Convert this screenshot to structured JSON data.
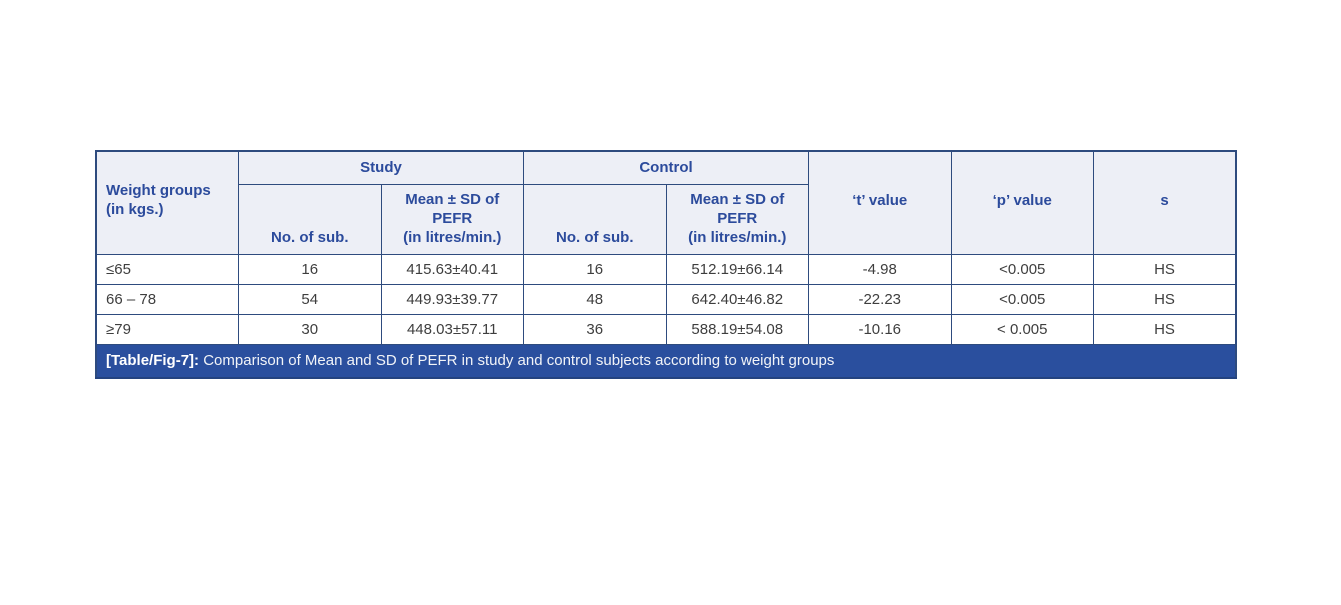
{
  "table": {
    "header": {
      "weight_groups": "Weight groups\n(in kgs.)",
      "study": "Study",
      "control": "Control",
      "study_no_of_sub": "No. of sub.",
      "study_mean_sd": "Mean ± SD of\nPEFR\n(in litres/min.)",
      "control_no_of_sub": "No. of sub.",
      "control_mean_sd": "Mean ± SD of\nPEFR\n(in litres/min.)",
      "t_value": "‘t’ value",
      "p_value": "‘p’ value",
      "s": "s"
    },
    "rows": [
      {
        "group": "≤65",
        "study_n": "16",
        "study_mean_sd": "415.63±40.41",
        "control_n": "16",
        "control_mean_sd": "512.19±66.14",
        "t_value": "-4.98",
        "p_value": "<0.005",
        "s": "HS"
      },
      {
        "group": "66 – 78",
        "study_n": "54",
        "study_mean_sd": "449.93±39.77",
        "control_n": "48",
        "control_mean_sd": "642.40±46.82",
        "t_value": "-22.23",
        "p_value": "<0.005",
        "s": "HS"
      },
      {
        "group": "≥79",
        "study_n": "30",
        "study_mean_sd": "448.03±57.11",
        "control_n": "36",
        "control_mean_sd": "588.19±54.08",
        "t_value": "-10.16",
        "p_value": "< 0.005",
        "s": "HS"
      }
    ],
    "caption": {
      "label": "[Table/Fig-7]:",
      "text": "Comparison of Mean and SD of PEFR in study and control subjects according to weight groups"
    }
  },
  "colors": {
    "border": "#2e4b7e",
    "header_bg": "#edeff6",
    "header_text": "#2c4b9c",
    "body_text": "#3e3e3e",
    "caption_bg": "#2a4f9e",
    "caption_text": "#ffffff"
  }
}
